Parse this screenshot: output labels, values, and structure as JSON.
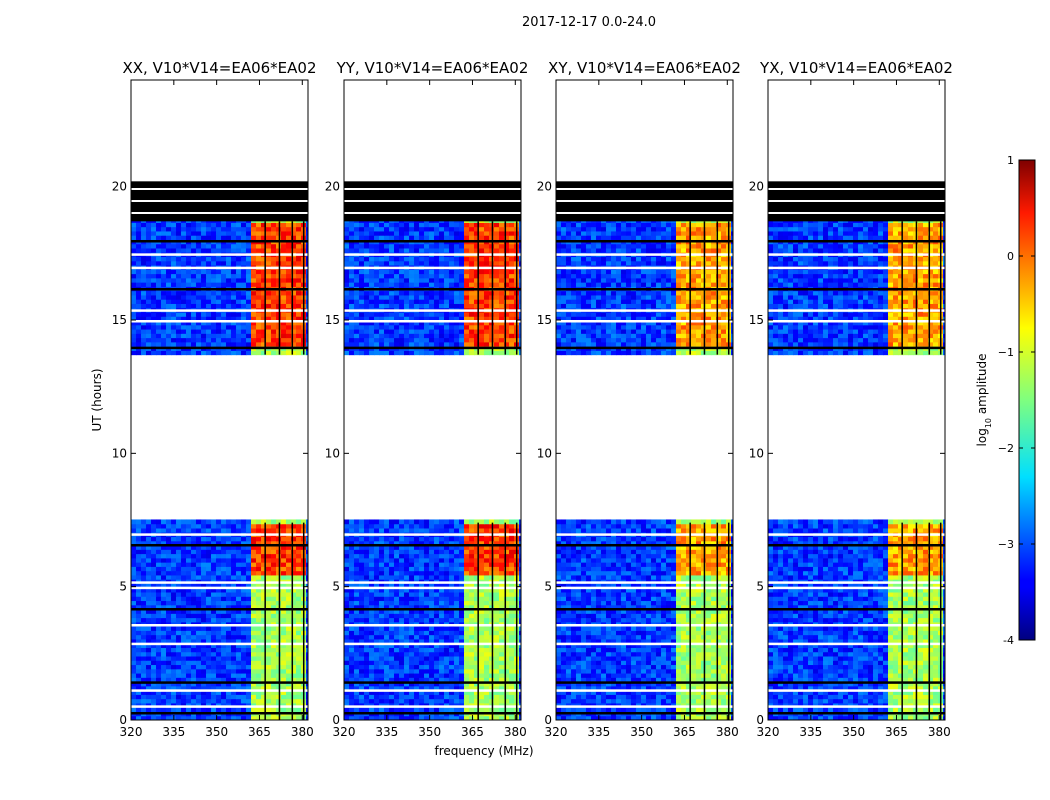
{
  "chart_data": {
    "type": "heatmap",
    "suptitle": "2017-12-17 0.0-24.0",
    "xlabel": "frequency (MHz)",
    "ylabel": "UT (hours)",
    "colorbar": {
      "label_prefix": "log",
      "label_sub": "10",
      "label_suffix": " amplitude",
      "range": [
        -4,
        1
      ],
      "ticks": [
        "-4",
        "−3",
        "−2",
        "−1",
        "0",
        "1"
      ],
      "colormap": "jet"
    },
    "xlim": [
      320,
      382
    ],
    "ylim": [
      0,
      24
    ],
    "xticks": [
      "320",
      "335",
      "350",
      "365",
      "380"
    ],
    "yticks": [
      "0",
      "5",
      "10",
      "15",
      "20"
    ],
    "panels": [
      {
        "title": "XX, V10*V14=EA06*EA02"
      },
      {
        "title": "YY, V10*V14=EA06*EA02"
      },
      {
        "title": "XY, V10*V14=EA06*EA02"
      },
      {
        "title": "YX, V10*V14=EA06*EA02"
      }
    ],
    "data_regions": [
      {
        "name": "block-early",
        "ut_start": 0.0,
        "ut_end": 7.4,
        "level": "noise"
      },
      {
        "name": "block-mid",
        "ut_start": 13.7,
        "ut_end": 18.7,
        "level": "noise"
      },
      {
        "name": "flagged-block",
        "ut_start": 18.7,
        "ut_end": 20.2,
        "level": "flagged"
      }
    ],
    "rfi_band_mhz": [
      362,
      381
    ],
    "rfi_channel_lines_mhz": [
      367,
      372,
      376.5,
      380.5
    ],
    "bright_rfi_hours": [
      [
        5.3,
        7.3
      ],
      [
        14.0,
        18.6
      ]
    ],
    "notes": "Colour values estimated: background about -3 (blue), RFI band -1 to 0.5 (cyan to red)."
  }
}
